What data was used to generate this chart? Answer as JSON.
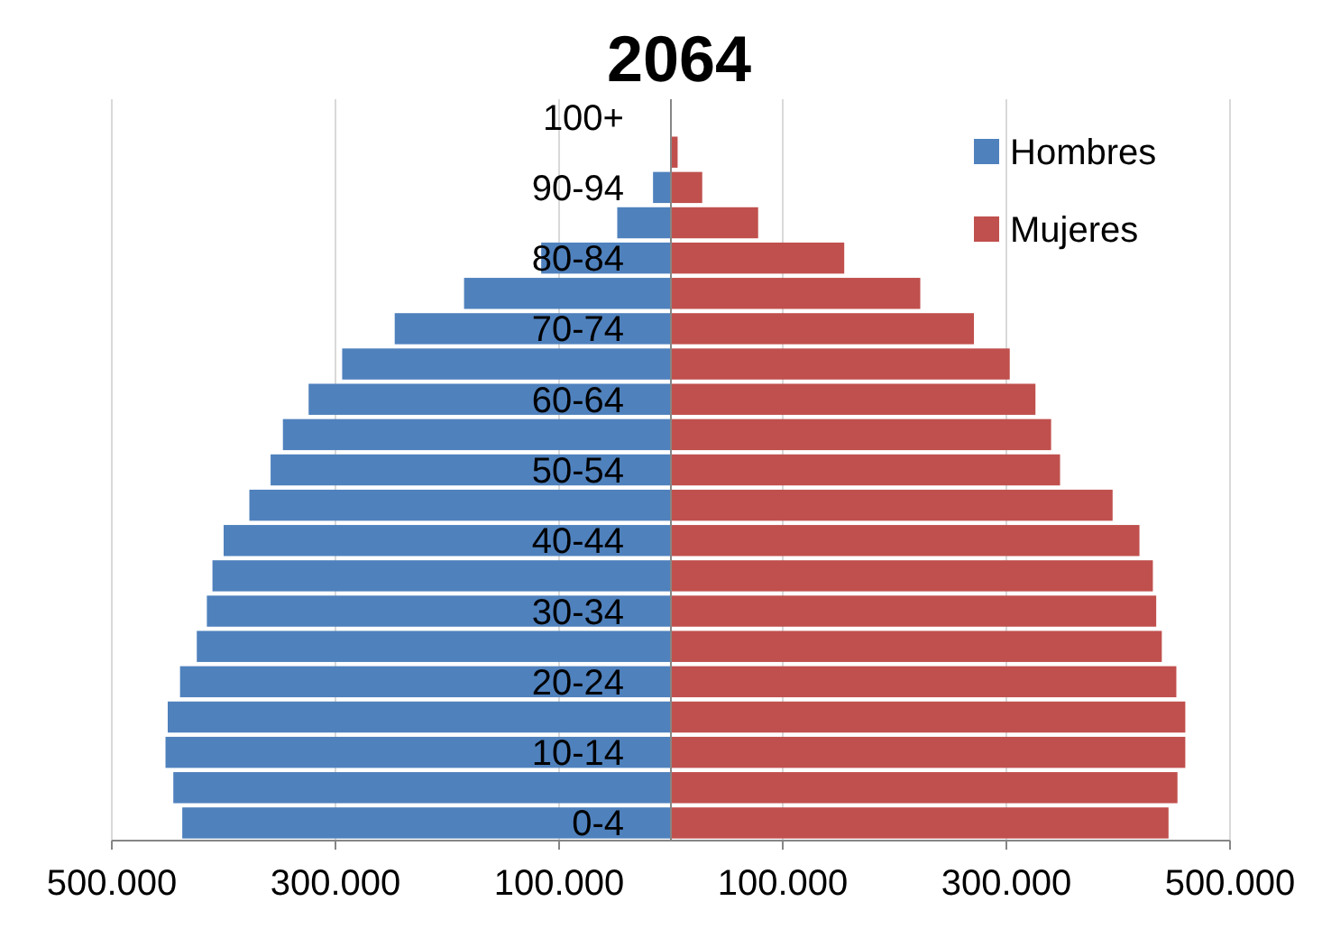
{
  "chart_data": {
    "type": "bar",
    "title": "2064",
    "orientation": "horizontal",
    "stacked": true,
    "categories": [
      "100+",
      null,
      "90-94",
      null,
      "80-84",
      null,
      "70-74",
      null,
      "60-64",
      null,
      "50-54",
      null,
      "40-44",
      null,
      "30-34",
      null,
      "20-24",
      null,
      "10-14",
      null,
      "0-4"
    ],
    "series": [
      {
        "name": "Hombres",
        "color": "#4f81bd",
        "values": [
          null,
          null,
          -16000,
          -48000,
          -116000,
          -185000,
          -247000,
          -294000,
          -324000,
          -347000,
          -358000,
          -377000,
          -400000,
          -410000,
          -415000,
          -424000,
          -439000,
          -450000,
          -452000,
          -445000,
          -437000
        ]
      },
      {
        "name": "Mujeres",
        "color": "#c0504d",
        "values": [
          null,
          6000,
          28000,
          78000,
          155000,
          223000,
          271000,
          303000,
          326000,
          340000,
          348000,
          395000,
          419000,
          431000,
          434000,
          439000,
          452000,
          460000,
          460000,
          453000,
          445000
        ]
      }
    ],
    "xlim": [
      -500000,
      500000
    ],
    "xticks": [
      {
        "value": -500000,
        "label": "500.000"
      },
      {
        "value": -300000,
        "label": "300.000"
      },
      {
        "value": -100000,
        "label": "100.000"
      },
      {
        "value": 100000,
        "label": "100.000"
      },
      {
        "value": 300000,
        "label": "300.000"
      },
      {
        "value": 500000,
        "label": "500.000"
      }
    ],
    "grid": "x",
    "legend": "top right"
  }
}
